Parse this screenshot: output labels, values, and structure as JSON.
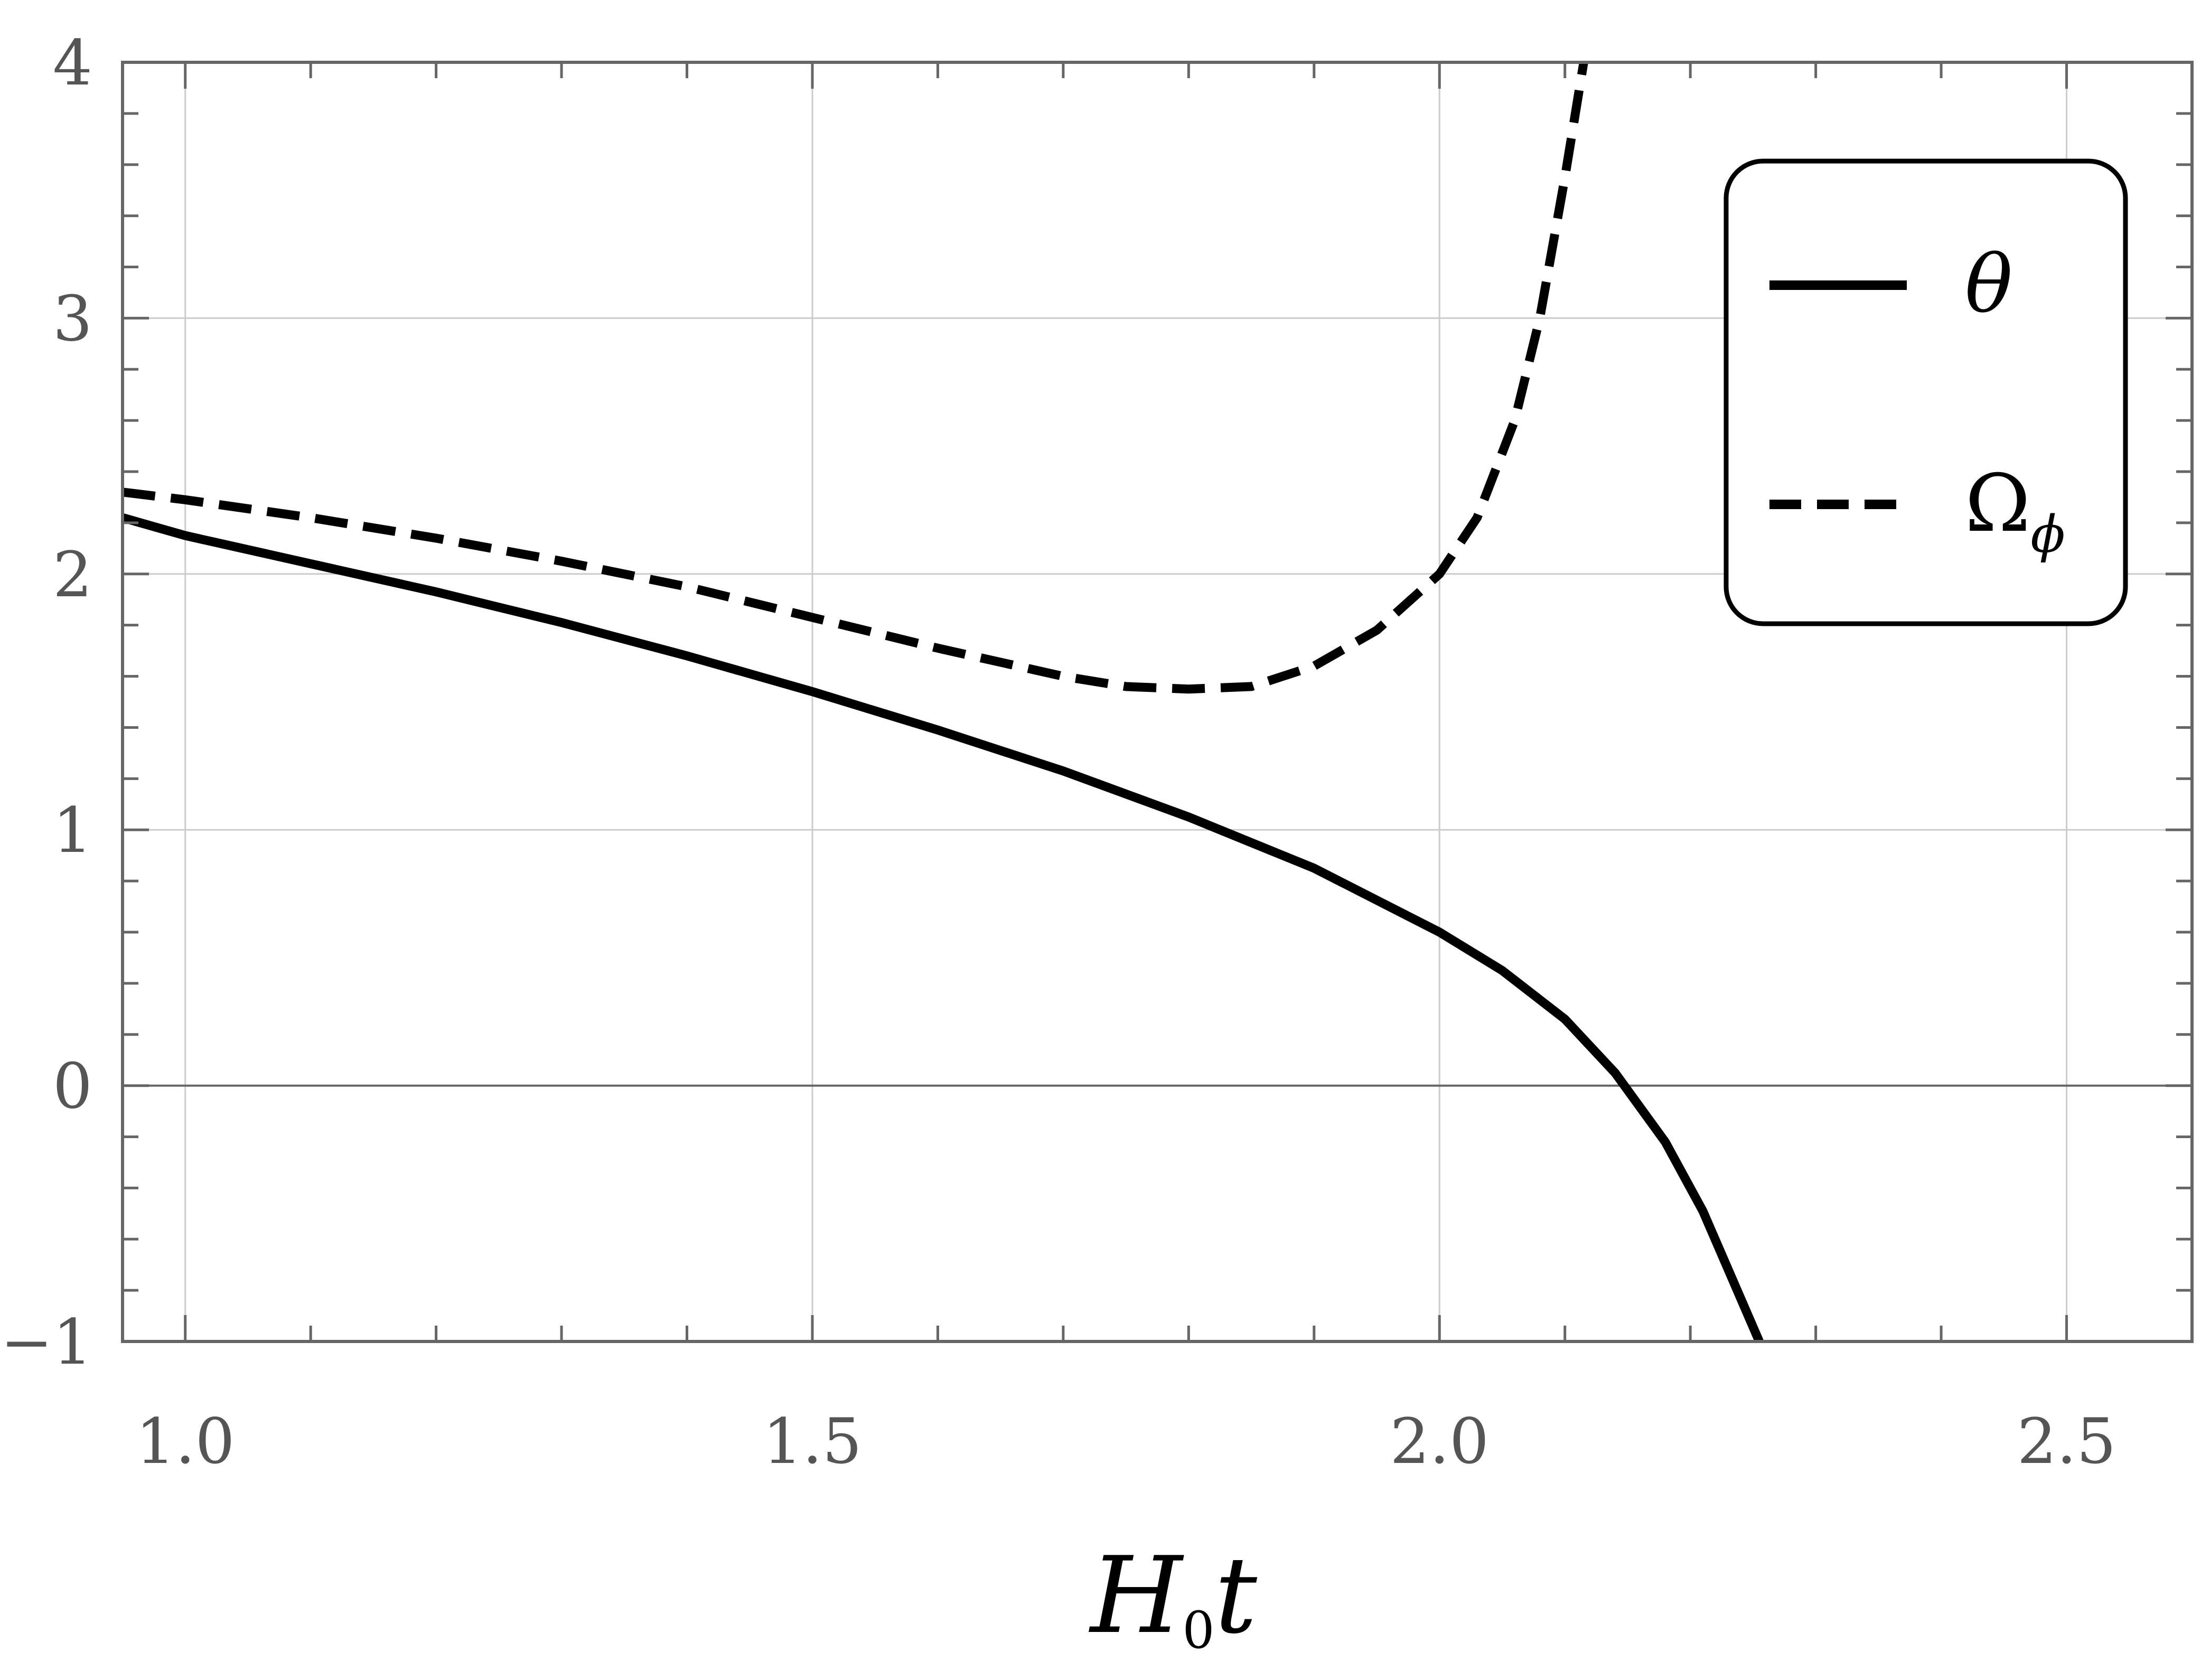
{
  "chart_data": {
    "type": "line",
    "title": "",
    "xlabel": "H",
    "xlabel_sub": "0",
    "xlabel_rest": "t",
    "ylabel": "",
    "xlim": [
      0.95,
      2.6
    ],
    "ylim": [
      -1,
      4
    ],
    "xticks": [
      1.0,
      1.5,
      2.0,
      2.5
    ],
    "xtick_labels": [
      "1.0",
      "1.5",
      "2.0",
      "2.5"
    ],
    "yticks": [
      -1,
      0,
      1,
      2,
      3,
      4
    ],
    "ytick_labels": [
      "−1",
      "0",
      "1",
      "2",
      "3",
      "4"
    ],
    "grid": true,
    "legend_position": "top-right",
    "series": [
      {
        "name": "θ",
        "name_sub": "",
        "style": "solid",
        "color": "#000000",
        "x": [
          0.95,
          1.0,
          1.1,
          1.2,
          1.3,
          1.4,
          1.5,
          1.6,
          1.7,
          1.8,
          1.9,
          2.0,
          2.05,
          2.1,
          2.14,
          2.18,
          2.21,
          2.24,
          2.255
        ],
        "y": [
          2.22,
          2.15,
          2.04,
          1.93,
          1.81,
          1.68,
          1.54,
          1.39,
          1.23,
          1.05,
          0.85,
          0.6,
          0.45,
          0.26,
          0.05,
          -0.22,
          -0.49,
          -0.83,
          -1.0
        ]
      },
      {
        "name": "Ω",
        "name_sub": "ϕ",
        "style": "dashed",
        "color": "#000000",
        "x": [
          0.95,
          1.0,
          1.1,
          1.2,
          1.3,
          1.4,
          1.5,
          1.6,
          1.7,
          1.75,
          1.8,
          1.85,
          1.9,
          1.95,
          2.0,
          2.03,
          2.06,
          2.08,
          2.1,
          2.115
        ],
        "y": [
          2.32,
          2.29,
          2.22,
          2.14,
          2.05,
          1.95,
          1.83,
          1.71,
          1.6,
          1.56,
          1.55,
          1.56,
          1.64,
          1.78,
          2.0,
          2.22,
          2.6,
          3.0,
          3.55,
          4.0
        ]
      }
    ]
  }
}
